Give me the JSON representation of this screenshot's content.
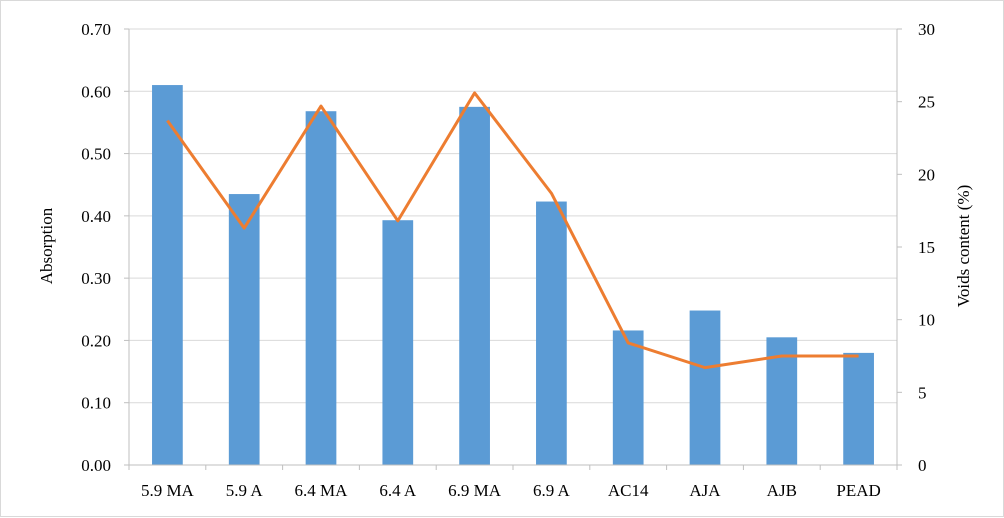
{
  "chart_data": {
    "type": "bar",
    "categories": [
      "5.9 MA",
      "5.9 A",
      "6.4 MA",
      "6.4 A",
      "6.9 MA",
      "6.9 A",
      "AC14",
      "AJA",
      "AJB",
      "PEAD"
    ],
    "series": [
      {
        "type": "bar",
        "axis": "left",
        "color": "#5b9bd5",
        "values": [
          0.61,
          0.435,
          0.568,
          0.393,
          0.575,
          0.423,
          0.216,
          0.248,
          0.205,
          0.18
        ]
      },
      {
        "type": "line",
        "axis": "right",
        "color": "#ed7d31",
        "values": [
          23.7,
          16.3,
          24.7,
          16.8,
          25.6,
          18.7,
          8.4,
          6.7,
          7.5,
          7.5
        ]
      }
    ],
    "title": "",
    "xlabel": "",
    "ylabel": "Absorption",
    "y2label": "Voids content (%)",
    "ylim": [
      0,
      0.7
    ],
    "y2lim": [
      0,
      30
    ],
    "yticks": [
      "0.00",
      "0.10",
      "0.20",
      "0.30",
      "0.40",
      "0.50",
      "0.60",
      "0.70"
    ],
    "y2ticks": [
      "0",
      "5",
      "10",
      "15",
      "20",
      "25",
      "30"
    ],
    "grid": true,
    "legend": "none"
  }
}
